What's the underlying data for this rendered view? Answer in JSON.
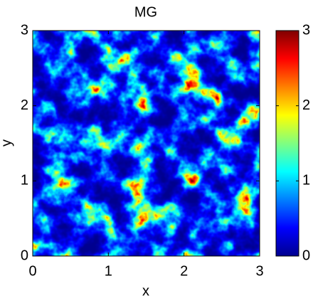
{
  "chart_data": {
    "type": "heatmap",
    "title": "MG",
    "x_label": "x",
    "y_label": "y",
    "xlim": [
      0,
      3
    ],
    "ylim": [
      0,
      3
    ],
    "xticks": [
      0,
      1,
      2,
      3
    ],
    "yticks": [
      0,
      1,
      2,
      3
    ],
    "colorbar": {
      "lim": [
        0,
        3
      ],
      "ticks": [
        0,
        1,
        2,
        3
      ]
    },
    "colormap": [
      "#00008f",
      "#0000ff",
      "#0080ff",
      "#00ffff",
      "#80ff80",
      "#ffff00",
      "#ff8000",
      "#ff0000",
      "#800000"
    ]
  }
}
